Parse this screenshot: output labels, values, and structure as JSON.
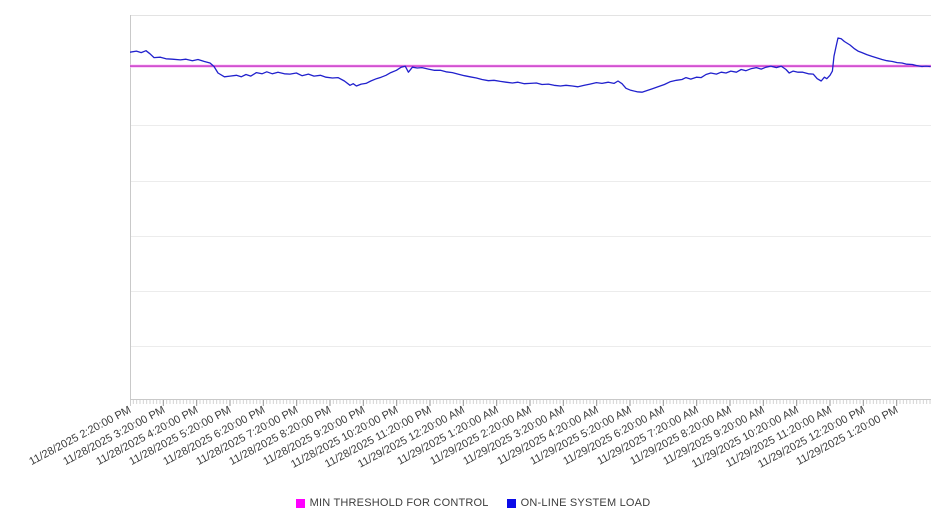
{
  "page": {
    "background": "#ffffff"
  },
  "colors": {
    "grid": "#ececec",
    "plot_border_top": "#e3e3e3",
    "axis": "#c9c9c9",
    "tick_minor": "#d2d2d2",
    "tick_major": "#9a9a9a",
    "label_text": "#3d3d3d"
  },
  "chart_data": {
    "type": "line",
    "title": "",
    "xlabel": "",
    "ylabel": "",
    "grid": true,
    "legend_position": "bottom-center",
    "y_axis_labels_visible": false,
    "y_scale_note": "no y-axis tick labels visible; values are normalized 0-100 of plot height",
    "x_labels": [
      "11/28/2025 2:20:00 PM",
      "11/28/2025 3:20:00 PM",
      "11/28/2025 4:20:00 PM",
      "11/28/2025 5:20:00 PM",
      "11/28/2025 6:20:00 PM",
      "11/28/2025 7:20:00 PM",
      "11/28/2025 8:20:00 PM",
      "11/28/2025 9:20:00 PM",
      "11/28/2025 10:20:00 PM",
      "11/28/2025 11:20:00 PM",
      "11/29/2025 12:20:00 AM",
      "11/29/2025 1:20:00 AM",
      "11/29/2025 2:20:00 AM",
      "11/29/2025 3:20:00 AM",
      "11/29/2025 4:20:00 AM",
      "11/29/2025 5:20:00 AM",
      "11/29/2025 6:20:00 AM",
      "11/29/2025 7:20:00 AM",
      "11/29/2025 8:20:00 AM",
      "11/29/2025 9:20:00 AM",
      "11/29/2025 10:20:00 AM",
      "11/29/2025 11:20:00 AM",
      "11/29/2025 12:20:00 PM",
      "11/29/2025 1:20:00 PM"
    ],
    "x_tick_interval": "1 hour",
    "series": [
      {
        "name": "MIN THRESHOLD FOR CONTROL",
        "type": "threshold-line",
        "legend_color": "#ff00ff",
        "line_color": "#c426c4",
        "halo_color": "#fbb9f6",
        "value": 86.7
      },
      {
        "name": "ON-LINE SYSTEM LOAD",
        "type": "line",
        "legend_color": "#0b0be8",
        "line_color": "#2121cd",
        "points": [
          [
            0.0,
            90.3
          ],
          [
            0.008,
            90.6
          ],
          [
            0.014,
            90.2
          ],
          [
            0.02,
            90.7
          ],
          [
            0.025,
            89.9
          ],
          [
            0.03,
            88.9
          ],
          [
            0.038,
            89.0
          ],
          [
            0.045,
            88.6
          ],
          [
            0.053,
            88.5
          ],
          [
            0.063,
            88.3
          ],
          [
            0.07,
            88.5
          ],
          [
            0.078,
            88.1
          ],
          [
            0.085,
            88.4
          ],
          [
            0.093,
            87.9
          ],
          [
            0.1,
            87.5
          ],
          [
            0.105,
            86.6
          ],
          [
            0.11,
            84.9
          ],
          [
            0.118,
            83.9
          ],
          [
            0.125,
            84.1
          ],
          [
            0.133,
            84.3
          ],
          [
            0.139,
            83.9
          ],
          [
            0.145,
            84.5
          ],
          [
            0.151,
            84.1
          ],
          [
            0.158,
            85.0
          ],
          [
            0.165,
            84.7
          ],
          [
            0.171,
            85.2
          ],
          [
            0.178,
            84.7
          ],
          [
            0.185,
            85.1
          ],
          [
            0.193,
            84.7
          ],
          [
            0.2,
            84.6
          ],
          [
            0.208,
            84.9
          ],
          [
            0.215,
            84.2
          ],
          [
            0.223,
            84.6
          ],
          [
            0.23,
            84.1
          ],
          [
            0.238,
            84.3
          ],
          [
            0.245,
            83.8
          ],
          [
            0.253,
            83.6
          ],
          [
            0.26,
            83.7
          ],
          [
            0.268,
            82.8
          ],
          [
            0.275,
            81.7
          ],
          [
            0.279,
            82.1
          ],
          [
            0.283,
            81.5
          ],
          [
            0.289,
            82.0
          ],
          [
            0.295,
            82.2
          ],
          [
            0.301,
            82.8
          ],
          [
            0.308,
            83.4
          ],
          [
            0.314,
            83.8
          ],
          [
            0.32,
            84.3
          ],
          [
            0.326,
            85.0
          ],
          [
            0.333,
            85.6
          ],
          [
            0.339,
            86.4
          ],
          [
            0.344,
            86.7
          ],
          [
            0.348,
            85.1
          ],
          [
            0.353,
            86.4
          ],
          [
            0.359,
            86.2
          ],
          [
            0.365,
            86.3
          ],
          [
            0.373,
            85.9
          ],
          [
            0.38,
            85.6
          ],
          [
            0.388,
            85.6
          ],
          [
            0.395,
            85.2
          ],
          [
            0.403,
            85.0
          ],
          [
            0.41,
            84.6
          ],
          [
            0.418,
            84.2
          ],
          [
            0.425,
            83.9
          ],
          [
            0.433,
            83.6
          ],
          [
            0.44,
            83.2
          ],
          [
            0.448,
            82.9
          ],
          [
            0.455,
            83.0
          ],
          [
            0.463,
            82.7
          ],
          [
            0.47,
            82.5
          ],
          [
            0.478,
            82.3
          ],
          [
            0.485,
            82.5
          ],
          [
            0.493,
            82.1
          ],
          [
            0.5,
            82.2
          ],
          [
            0.508,
            82.3
          ],
          [
            0.515,
            81.9
          ],
          [
            0.523,
            82.0
          ],
          [
            0.53,
            81.7
          ],
          [
            0.538,
            81.5
          ],
          [
            0.545,
            81.7
          ],
          [
            0.553,
            81.5
          ],
          [
            0.56,
            81.3
          ],
          [
            0.568,
            81.7
          ],
          [
            0.575,
            82.0
          ],
          [
            0.583,
            82.4
          ],
          [
            0.59,
            82.2
          ],
          [
            0.598,
            82.5
          ],
          [
            0.605,
            82.2
          ],
          [
            0.61,
            82.8
          ],
          [
            0.615,
            82.1
          ],
          [
            0.62,
            80.9
          ],
          [
            0.626,
            80.4
          ],
          [
            0.634,
            80.0
          ],
          [
            0.64,
            79.9
          ],
          [
            0.646,
            80.3
          ],
          [
            0.653,
            80.8
          ],
          [
            0.66,
            81.3
          ],
          [
            0.668,
            81.9
          ],
          [
            0.675,
            82.6
          ],
          [
            0.683,
            83.0
          ],
          [
            0.69,
            83.2
          ],
          [
            0.695,
            83.7
          ],
          [
            0.701,
            83.3
          ],
          [
            0.708,
            83.8
          ],
          [
            0.714,
            83.7
          ],
          [
            0.72,
            84.5
          ],
          [
            0.726,
            84.9
          ],
          [
            0.733,
            84.6
          ],
          [
            0.739,
            85.1
          ],
          [
            0.745,
            84.9
          ],
          [
            0.751,
            85.4
          ],
          [
            0.758,
            85.1
          ],
          [
            0.764,
            85.8
          ],
          [
            0.77,
            85.5
          ],
          [
            0.776,
            86.0
          ],
          [
            0.783,
            86.3
          ],
          [
            0.789,
            85.9
          ],
          [
            0.795,
            86.4
          ],
          [
            0.801,
            86.7
          ],
          [
            0.808,
            86.3
          ],
          [
            0.814,
            86.7
          ],
          [
            0.82,
            85.8
          ],
          [
            0.824,
            84.9
          ],
          [
            0.829,
            85.4
          ],
          [
            0.835,
            85.1
          ],
          [
            0.841,
            85.1
          ],
          [
            0.848,
            84.7
          ],
          [
            0.854,
            84.6
          ],
          [
            0.859,
            83.4
          ],
          [
            0.864,
            82.8
          ],
          [
            0.868,
            83.8
          ],
          [
            0.871,
            83.4
          ],
          [
            0.875,
            84.3
          ],
          [
            0.878,
            85.4
          ],
          [
            0.88,
            89.3
          ],
          [
            0.883,
            92.2
          ],
          [
            0.885,
            94.0
          ],
          [
            0.889,
            93.8
          ],
          [
            0.893,
            93.1
          ],
          [
            0.896,
            92.7
          ],
          [
            0.9,
            92.2
          ],
          [
            0.905,
            91.3
          ],
          [
            0.91,
            90.6
          ],
          [
            0.915,
            90.2
          ],
          [
            0.921,
            89.7
          ],
          [
            0.928,
            89.2
          ],
          [
            0.934,
            88.8
          ],
          [
            0.94,
            88.4
          ],
          [
            0.946,
            88.1
          ],
          [
            0.953,
            87.9
          ],
          [
            0.959,
            87.6
          ],
          [
            0.965,
            87.5
          ],
          [
            0.971,
            87.2
          ],
          [
            0.978,
            87.1
          ],
          [
            0.984,
            86.8
          ],
          [
            0.99,
            86.6
          ],
          [
            0.995,
            86.7
          ],
          [
            1.0,
            86.6
          ]
        ]
      }
    ]
  },
  "legend": {
    "items": [
      {
        "label": "MIN THRESHOLD FOR CONTROL",
        "color": "#ff00ff"
      },
      {
        "label": "ON-LINE SYSTEM LOAD",
        "color": "#0b0be8"
      }
    ]
  }
}
